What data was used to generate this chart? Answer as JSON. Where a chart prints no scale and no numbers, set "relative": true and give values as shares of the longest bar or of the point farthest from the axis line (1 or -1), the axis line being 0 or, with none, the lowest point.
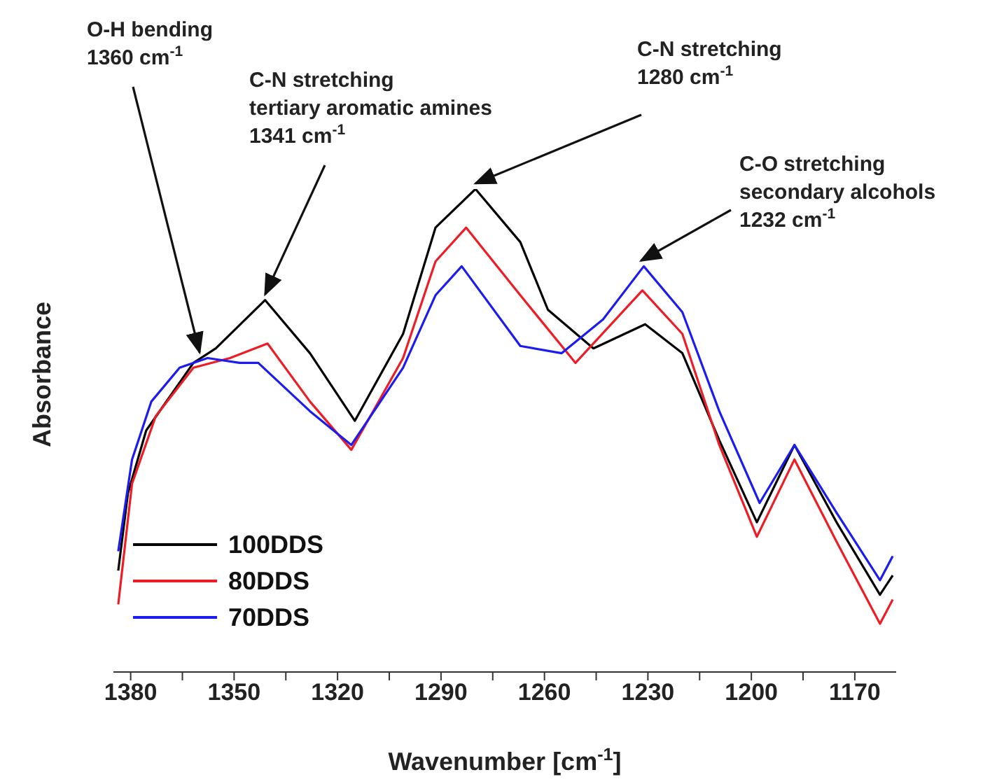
{
  "chart_data": {
    "type": "line",
    "relative": true,
    "xlabel": "Wavenumber [cm$^{-1}$]",
    "ylabel": "Absorbance",
    "xlim": [
      1385,
      1158
    ],
    "xticks": [
      1380,
      {
        "value": 1365,
        "label": null
      },
      1350,
      {
        "value": 1335,
        "label": null
      },
      1320,
      {
        "value": 1305,
        "label": null
      },
      1290,
      {
        "value": 1275,
        "label": null
      },
      1260,
      {
        "value": 1245,
        "label": null
      },
      1230,
      {
        "value": 1215,
        "label": null
      },
      1200,
      {
        "value": 1185,
        "label": null
      },
      1170
    ],
    "legend": "bottom left",
    "grid": false,
    "series": [
      {
        "name": "100DDS",
        "color": "#000000",
        "x": [
          1383.6,
          1380.8,
          1375.5,
          1361.8,
          1355.3,
          1341,
          1328,
          1315,
          1301,
          1291.6,
          1280,
          1267,
          1259,
          1245.8,
          1230.8,
          1220,
          1209.3,
          1198.4,
          1187.5,
          1175.3,
          1162.7,
          1159
        ],
        "values": [
          0.21,
          0.37,
          0.5,
          0.64,
          0.67,
          0.77,
          0.66,
          0.52,
          0.7,
          0.92,
          1.0,
          0.89,
          0.75,
          0.67,
          0.72,
          0.66,
          0.48,
          0.31,
          0.47,
          0.31,
          0.16,
          0.2
        ]
      },
      {
        "name": "80DDS",
        "color": "#ee1c24",
        "x": [
          1383.6,
          1379.6,
          1372.7,
          1361.8,
          1351.2,
          1340.3,
          1328,
          1316,
          1301,
          1291.6,
          1282.7,
          1267,
          1251,
          1231.6,
          1220,
          1209.3,
          1198.4,
          1187.5,
          1175.3,
          1162.7,
          1159
        ],
        "values": [
          0.14,
          0.39,
          0.53,
          0.63,
          0.65,
          0.68,
          0.56,
          0.46,
          0.65,
          0.85,
          0.92,
          0.78,
          0.64,
          0.79,
          0.7,
          0.47,
          0.28,
          0.44,
          0.27,
          0.1,
          0.15
        ]
      },
      {
        "name": "70DDS",
        "color": "#1c1cf0",
        "x": [
          1383.6,
          1379.6,
          1374,
          1365.8,
          1357.7,
          1348.4,
          1343,
          1328,
          1316,
          1301,
          1291.6,
          1284,
          1267,
          1255,
          1243,
          1231.2,
          1220,
          1209.3,
          1197.6,
          1187.5,
          1175.3,
          1162.7,
          1159
        ],
        "values": [
          0.25,
          0.44,
          0.56,
          0.63,
          0.65,
          0.64,
          0.64,
          0.54,
          0.47,
          0.63,
          0.78,
          0.84,
          0.675,
          0.66,
          0.73,
          0.84,
          0.745,
          0.54,
          0.35,
          0.47,
          0.33,
          0.19,
          0.24
        ]
      }
    ],
    "annotations": [
      {
        "text": "O-H bending\n1360 cm$^{-1}$",
        "x": 1360,
        "y": 0.65
      },
      {
        "text": "C-N stretching\ntertiary aromatic amines\n1341 cm$^{-1}$",
        "x": 1341,
        "y": 0.77
      },
      {
        "text": "C-N stretching\n1280 cm$^{-1}$",
        "x": 1280,
        "y": 1.0
      },
      {
        "text": "C-O stretching\nsecondary alcohols\n1232 cm$^{-1}$",
        "x": 1232,
        "y": 0.84
      }
    ]
  }
}
